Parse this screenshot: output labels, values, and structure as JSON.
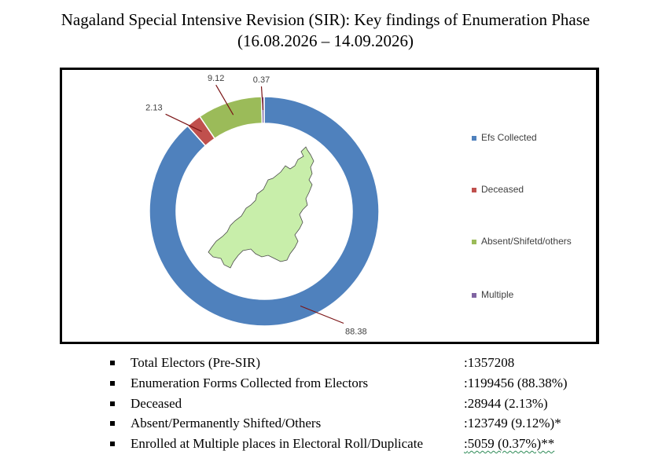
{
  "title": {
    "line1": "Nagaland Special Intensive Revision (SIR): Key findings of Enumeration Phase",
    "line2": "(16.08.2026 – 14.09.2026)"
  },
  "chart_data": {
    "type": "pie",
    "subtype": "doughnut",
    "categories": [
      "Efs Collected",
      "Deceased",
      "Absent/Shifetd/others",
      "Multiple"
    ],
    "values": [
      88.38,
      2.13,
      9.12,
      0.37
    ],
    "data_labels": [
      "88.38",
      "2.13",
      "9.12",
      "0.37"
    ],
    "colors": [
      "#4f81bd",
      "#c0504d",
      "#9bbb59",
      "#8064a2"
    ],
    "legend": "right",
    "center_image": "nagaland-map"
  },
  "stats": [
    {
      "label": "Total Electors (Pre-SIR)",
      "value": ":1357208"
    },
    {
      "label": "Enumeration Forms Collected from Electors",
      "value": ":1199456 (88.38%)"
    },
    {
      "label": "Deceased",
      "value": ":28944 (2.13%)"
    },
    {
      "label": "Absent/Permanently Shifted/Others",
      "value": ":123749 (9.12%)*"
    },
    {
      "label": "Enrolled at Multiple places in Electoral Roll/Duplicate",
      "value": ":5059 (0.37%)**",
      "value_prefix": ":",
      "value_rest": "5059 (0.37%)**"
    }
  ]
}
